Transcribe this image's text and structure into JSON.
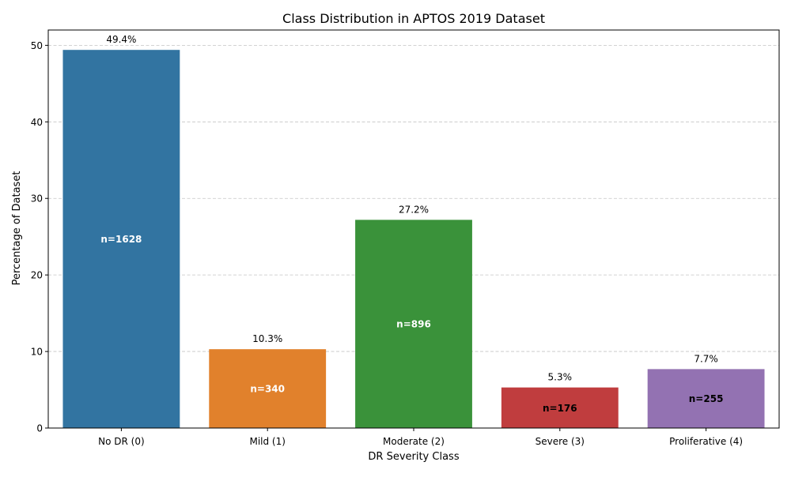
{
  "chart_data": {
    "type": "bar",
    "title": "Class Distribution in APTOS 2019 Dataset",
    "xlabel": "DR Severity Class",
    "ylabel": "Percentage of Dataset",
    "categories": [
      "No DR (0)",
      "Mild (1)",
      "Moderate (2)",
      "Severe (3)",
      "Proliferative (4)"
    ],
    "values": [
      49.4,
      10.3,
      27.2,
      5.3,
      7.7
    ],
    "value_labels": [
      "49.4%",
      "10.3%",
      "27.2%",
      "5.3%",
      "7.7%"
    ],
    "count_labels": [
      "n=1628",
      "n=340",
      "n=896",
      "n=176",
      "n=255"
    ],
    "colors": [
      "#3274a1",
      "#e1812c",
      "#3a923a",
      "#c03d3e",
      "#9372b2"
    ],
    "count_label_colors": [
      "#ffffff",
      "#ffffff",
      "#ffffff",
      "#000000",
      "#000000"
    ],
    "ylim": [
      0,
      52
    ],
    "yticks": [
      0,
      10,
      20,
      30,
      40,
      50
    ],
    "grid": "y-dashed",
    "legend": "none"
  }
}
